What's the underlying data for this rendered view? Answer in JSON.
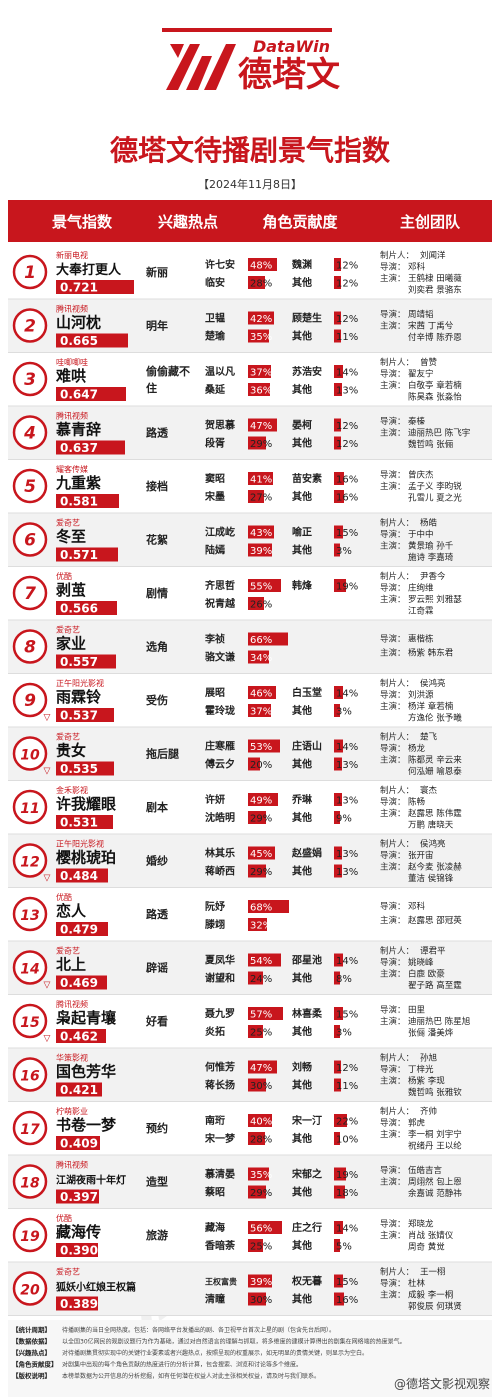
{
  "brand": {
    "name": "德塔文",
    "en": "DataWin"
  },
  "title": "德塔文待播剧景气指数",
  "date": "【2024年11月8日】",
  "colors": {
    "accent": "#c8161d",
    "bg_alt": "#f2f2f2",
    "bg": "#ffffff"
  },
  "columns": [
    "景气指数",
    "兴趣热点",
    "角色贡献度",
    "主创团队"
  ],
  "rows": [
    {
      "rank": "1",
      "platform": "新丽电视",
      "title": "大奉打更人",
      "index": "0.721",
      "index_num": 0.721,
      "trend": "",
      "hot": "新丽",
      "roles": [
        {
          "name": "许七安",
          "pct": "48%",
          "v": 48
        },
        {
          "name": "临安",
          "pct": "28%",
          "v": 28
        },
        {
          "name": "魏渊",
          "pct": "12%",
          "v": 12
        },
        {
          "name": "其他",
          "pct": "12%",
          "v": 12
        }
      ],
      "crew": [
        [
          "制片人：",
          "刘闻洋"
        ],
        [
          "导演：",
          "邓科"
        ],
        [
          "主演：",
          "王鹤棣 田曦薇"
        ],
        [
          "",
          "刘奕君 景骆东"
        ]
      ]
    },
    {
      "rank": "2",
      "platform": "腾讯视频",
      "title": "山河枕",
      "index": "0.665",
      "index_num": 0.665,
      "trend": "",
      "hot": "明年",
      "roles": [
        {
          "name": "卫韫",
          "pct": "42%",
          "v": 42
        },
        {
          "name": "楚瑜",
          "pct": "35%",
          "v": 35
        },
        {
          "name": "顾楚生",
          "pct": "12%",
          "v": 12
        },
        {
          "name": "其他",
          "pct": "11%",
          "v": 11
        }
      ],
      "crew": [
        [
          "导演：",
          "周靖韬"
        ],
        [
          "主演：",
          "宋茜 丁禹兮"
        ],
        [
          "",
          "付辛博 陈乔恩"
        ]
      ]
    },
    {
      "rank": "3",
      "platform": "哇唧唧哇",
      "title": "难哄",
      "index": "0.647",
      "index_num": 0.647,
      "trend": "",
      "hot": "偷偷藏不住",
      "roles": [
        {
          "name": "温以凡",
          "pct": "37%",
          "v": 37
        },
        {
          "name": "桑延",
          "pct": "36%",
          "v": 36
        },
        {
          "name": "苏浩安",
          "pct": "14%",
          "v": 14
        },
        {
          "name": "其他",
          "pct": "13%",
          "v": 13
        }
      ],
      "crew": [
        [
          "制片人：",
          "曾赞"
        ],
        [
          "导演：",
          "翟友宁"
        ],
        [
          "主演：",
          "白敬亭 章若楠"
        ],
        [
          "",
          "陈昊森 张淼怡"
        ]
      ]
    },
    {
      "rank": "4",
      "platform": "腾讯视频",
      "title": "慕青辞",
      "index": "0.637",
      "index_num": 0.637,
      "trend": "",
      "hot": "路透",
      "roles": [
        {
          "name": "贺思慕",
          "pct": "47%",
          "v": 47
        },
        {
          "name": "段胥",
          "pct": "29%",
          "v": 29
        },
        {
          "name": "晏柯",
          "pct": "12%",
          "v": 12
        },
        {
          "name": "其他",
          "pct": "12%",
          "v": 12
        }
      ],
      "crew": [
        [
          "导演：",
          "秦榛"
        ],
        [
          "主演：",
          "迪丽热巴 陈飞宇"
        ],
        [
          "",
          "魏哲鸣 张俪"
        ]
      ]
    },
    {
      "rank": "5",
      "platform": "耀客传媒",
      "title": "九重紫",
      "index": "0.581",
      "index_num": 0.581,
      "trend": "",
      "hot": "接档",
      "roles": [
        {
          "name": "窦昭",
          "pct": "41%",
          "v": 41
        },
        {
          "name": "宋墨",
          "pct": "27%",
          "v": 27
        },
        {
          "name": "苗安素",
          "pct": "16%",
          "v": 16
        },
        {
          "name": "其他",
          "pct": "16%",
          "v": 16
        }
      ],
      "crew": [
        [
          "导演：",
          "曾庆杰"
        ],
        [
          "主演：",
          "孟子义 李昀锐"
        ],
        [
          "",
          "孔雪儿 夏之光"
        ]
      ]
    },
    {
      "rank": "6",
      "platform": "爱奇艺",
      "title": "冬至",
      "index": "0.571",
      "index_num": 0.571,
      "trend": "",
      "hot": "花絮",
      "roles": [
        {
          "name": "江成屹",
          "pct": "43%",
          "v": 43
        },
        {
          "name": "陆嫣",
          "pct": "39%",
          "v": 39
        },
        {
          "name": "喻正",
          "pct": "15%",
          "v": 15
        },
        {
          "name": "其他",
          "pct": "3%",
          "v": 3
        }
      ],
      "crew": [
        [
          "制片人：",
          "杨皓"
        ],
        [
          "导演：",
          "于中中"
        ],
        [
          "主演：",
          "黄景瑜 孙千"
        ],
        [
          "",
          "施诗 李嘉琦"
        ]
      ]
    },
    {
      "rank": "7",
      "platform": "优酷",
      "title": "剥茧",
      "index": "0.566",
      "index_num": 0.566,
      "trend": "",
      "hot": "剧情",
      "roles": [
        {
          "name": "齐思哲",
          "pct": "55%",
          "v": 55
        },
        {
          "name": "祝青越",
          "pct": "26%",
          "v": 26
        },
        {
          "name": "韩烽",
          "pct": "19%",
          "v": 19
        },
        {
          "name": "",
          "pct": "",
          "v": 0
        }
      ],
      "crew": [
        [
          "制片人：",
          "尹香今"
        ],
        [
          "导演：",
          "庄绚维"
        ],
        [
          "主演：",
          "罗云熙 刘雅瑟"
        ],
        [
          "",
          "江奇霖"
        ]
      ]
    },
    {
      "rank": "8",
      "platform": "爱奇艺",
      "title": "家业",
      "index": "0.557",
      "index_num": 0.557,
      "trend": "",
      "hot": "选角",
      "roles": [
        {
          "name": "李祯",
          "pct": "66%",
          "v": 66
        },
        {
          "name": "骆文谦",
          "pct": "34%",
          "v": 34
        },
        {
          "name": "",
          "pct": "",
          "v": 0
        },
        {
          "name": "",
          "pct": "",
          "v": 0
        }
      ],
      "crew": [
        [
          "导演：",
          "惠楷栋"
        ],
        [
          "主演：",
          "杨紫 韩东君"
        ]
      ]
    },
    {
      "rank": "9",
      "platform": "正午阳光影视",
      "title": "雨霖铃",
      "index": "0.537",
      "index_num": 0.537,
      "trend": "▽",
      "hot": "受伤",
      "roles": [
        {
          "name": "展昭",
          "pct": "46%",
          "v": 46
        },
        {
          "name": "霍玲珑",
          "pct": "37%",
          "v": 37
        },
        {
          "name": "白玉堂",
          "pct": "14%",
          "v": 14
        },
        {
          "name": "其他",
          "pct": "3%",
          "v": 3
        }
      ],
      "crew": [
        [
          "制片人：",
          "侯鸿亮"
        ],
        [
          "导演：",
          "刘洪源"
        ],
        [
          "主演：",
          "杨洋 章若楠"
        ],
        [
          "",
          "方逸伦 张予曦"
        ]
      ]
    },
    {
      "rank": "10",
      "platform": "爱奇艺",
      "title": "贵女",
      "index": "0.535",
      "index_num": 0.535,
      "trend": "▽",
      "hot": "拖后腿",
      "roles": [
        {
          "name": "庄寒雁",
          "pct": "53%",
          "v": 53
        },
        {
          "name": "傅云夕",
          "pct": "20%",
          "v": 20
        },
        {
          "name": "庄语山",
          "pct": "14%",
          "v": 14
        },
        {
          "name": "其他",
          "pct": "13%",
          "v": 13
        }
      ],
      "crew": [
        [
          "制片人：",
          "楚飞"
        ],
        [
          "导演：",
          "杨龙"
        ],
        [
          "主演：",
          "陈都灵 辛云来"
        ],
        [
          "",
          "何泓姗 喻恩泰"
        ]
      ]
    },
    {
      "rank": "11",
      "platform": "金禾影视",
      "title": "许我耀眼",
      "index": "0.531",
      "index_num": 0.531,
      "trend": "",
      "hot": "剧本",
      "roles": [
        {
          "name": "许妍",
          "pct": "49%",
          "v": 49
        },
        {
          "name": "沈皓明",
          "pct": "29%",
          "v": 29
        },
        {
          "name": "乔琳",
          "pct": "13%",
          "v": 13
        },
        {
          "name": "其他",
          "pct": "9%",
          "v": 9
        }
      ],
      "crew": [
        [
          "制片人：",
          "寰杰"
        ],
        [
          "导演：",
          "陈畅"
        ],
        [
          "主演：",
          "赵露思 陈伟霆"
        ],
        [
          "",
          "万鹏 唐晓天"
        ]
      ]
    },
    {
      "rank": "12",
      "platform": "正午阳光影视",
      "title": "樱桃琥珀",
      "index": "0.484",
      "index_num": 0.484,
      "trend": "▽",
      "hot": "婚纱",
      "roles": [
        {
          "name": "林其乐",
          "pct": "45%",
          "v": 45
        },
        {
          "name": "蒋峤西",
          "pct": "29%",
          "v": 29
        },
        {
          "name": "赵盛娟",
          "pct": "13%",
          "v": 13
        },
        {
          "name": "其他",
          "pct": "13%",
          "v": 13
        }
      ],
      "crew": [
        [
          "制片人：",
          "侯鸿亮"
        ],
        [
          "导演：",
          "张开宙"
        ],
        [
          "主演：",
          "赵今麦 张凌赫"
        ],
        [
          "",
          "董洁 侯锦锋"
        ]
      ]
    },
    {
      "rank": "13",
      "platform": "优酷",
      "title": "恋人",
      "index": "0.479",
      "index_num": 0.479,
      "trend": "",
      "hot": "路透",
      "roles": [
        {
          "name": "阮妤",
          "pct": "68%",
          "v": 68
        },
        {
          "name": "滕翊",
          "pct": "32%",
          "v": 32
        },
        {
          "name": "",
          "pct": "",
          "v": 0
        },
        {
          "name": "",
          "pct": "",
          "v": 0
        }
      ],
      "crew": [
        [
          "导演：",
          "邓科"
        ],
        [
          "主演：",
          "赵露思 邵冠英"
        ]
      ]
    },
    {
      "rank": "14",
      "platform": "爱奇艺",
      "title": "北上",
      "index": "0.469",
      "index_num": 0.469,
      "trend": "▽",
      "hot": "辟谣",
      "roles": [
        {
          "name": "夏凤华",
          "pct": "54%",
          "v": 54
        },
        {
          "name": "谢望和",
          "pct": "24%",
          "v": 24
        },
        {
          "name": "邵星池",
          "pct": "14%",
          "v": 14
        },
        {
          "name": "其他",
          "pct": "8%",
          "v": 8
        }
      ],
      "crew": [
        [
          "制片人：",
          "谭君平"
        ],
        [
          "导演：",
          "姚晓峰"
        ],
        [
          "主演：",
          "白鹿 欧豪"
        ],
        [
          "",
          "翟子路 高至霆"
        ]
      ]
    },
    {
      "rank": "15",
      "platform": "腾讯视频",
      "title": "枭起青壤",
      "index": "0.462",
      "index_num": 0.462,
      "trend": "▽",
      "hot": "好看",
      "roles": [
        {
          "name": "聂九罗",
          "pct": "57%",
          "v": 57
        },
        {
          "name": "炎拓",
          "pct": "25%",
          "v": 25
        },
        {
          "name": "林喜柔",
          "pct": "15%",
          "v": 15
        },
        {
          "name": "其他",
          "pct": "3%",
          "v": 3
        }
      ],
      "crew": [
        [
          "导演：",
          "田里"
        ],
        [
          "主演：",
          "迪丽热巴 陈星旭"
        ],
        [
          "",
          "张俪 潘美烨"
        ]
      ]
    },
    {
      "rank": "16",
      "platform": "华策影视",
      "title": "国色芳华",
      "index": "0.421",
      "index_num": 0.421,
      "trend": "",
      "hot": "",
      "roles": [
        {
          "name": "何惟芳",
          "pct": "47%",
          "v": 47
        },
        {
          "name": "蒋长扬",
          "pct": "30%",
          "v": 30
        },
        {
          "name": "刘畅",
          "pct": "12%",
          "v": 12
        },
        {
          "name": "其他",
          "pct": "11%",
          "v": 11
        }
      ],
      "crew": [
        [
          "制片人：",
          "孙旭"
        ],
        [
          "导演：",
          "丁梓光"
        ],
        [
          "主演：",
          "杨紫 李现"
        ],
        [
          "",
          "魏哲鸣 张雅钦"
        ]
      ]
    },
    {
      "rank": "17",
      "platform": "柠萌影业",
      "title": "书卷一梦",
      "index": "0.409",
      "index_num": 0.409,
      "trend": "",
      "hot": "预约",
      "roles": [
        {
          "name": "南珩",
          "pct": "40%",
          "v": 40
        },
        {
          "name": "宋一梦",
          "pct": "28%",
          "v": 28
        },
        {
          "name": "宋一汀",
          "pct": "22%",
          "v": 22
        },
        {
          "name": "其他",
          "pct": "10%",
          "v": 10
        }
      ],
      "crew": [
        [
          "制片人：",
          "齐帅"
        ],
        [
          "导演：",
          "郭虎"
        ],
        [
          "主演：",
          "李一桐 刘宇宁"
        ],
        [
          "",
          "祝绪丹 王以纶"
        ]
      ]
    },
    {
      "rank": "18",
      "platform": "腾讯视频",
      "title": "江湖夜雨十年灯",
      "index": "0.397",
      "index_num": 0.397,
      "trend": "",
      "hot": "造型",
      "roles": [
        {
          "name": "慕清晏",
          "pct": "35%",
          "v": 35
        },
        {
          "name": "蔡昭",
          "pct": "29%",
          "v": 29
        },
        {
          "name": "宋郁之",
          "pct": "19%",
          "v": 19
        },
        {
          "name": "其他",
          "pct": "18%",
          "v": 18
        }
      ],
      "crew": [
        [
          "导演：",
          "伍皓吉言"
        ],
        [
          "主演：",
          "周翊然 包上恩"
        ],
        [
          "",
          "余嘉诚 范静祎"
        ]
      ]
    },
    {
      "rank": "19",
      "platform": "优酷",
      "title": "藏海传",
      "index": "0.390",
      "index_num": 0.39,
      "trend": "",
      "hot": "旅游",
      "roles": [
        {
          "name": "藏海",
          "pct": "56%",
          "v": 56
        },
        {
          "name": "香暗荼",
          "pct": "25%",
          "v": 25
        },
        {
          "name": "庄之行",
          "pct": "14%",
          "v": 14
        },
        {
          "name": "其他",
          "pct": "5%",
          "v": 5
        }
      ],
      "crew": [
        [
          "导演：",
          "郑晓龙"
        ],
        [
          "主演：",
          "肖战 张婧仪"
        ],
        [
          "",
          "周奇 黄觉"
        ]
      ]
    },
    {
      "rank": "20",
      "platform": "爱奇艺",
      "title": "狐妖小红娘王权篇",
      "index": "0.389",
      "index_num": 0.389,
      "trend": "",
      "hot": "",
      "roles": [
        {
          "name": "王权富贵",
          "pct": "39%",
          "v": 39
        },
        {
          "name": "清瞳",
          "pct": "30%",
          "v": 30
        },
        {
          "name": "权无暮",
          "pct": "15%",
          "v": 15
        },
        {
          "name": "其他",
          "pct": "16%",
          "v": 16
        }
      ],
      "crew": [
        [
          "制片人：",
          "王一栩"
        ],
        [
          "导演：",
          "杜林"
        ],
        [
          "主演：",
          "成毅 李一桐"
        ],
        [
          "",
          "郭俊辰 何琪贤"
        ]
      ]
    }
  ],
  "notes": [
    {
      "label": "【统计周期】",
      "text": "待播剧集的当日全网热度。包括：各网络平台发播出的剧、各卫视平台首次上星的剧（包含先台后网）。"
    },
    {
      "label": "【数据依据】",
      "text": "以全国30亿网民的观剧议题行为作为基础，通过对自然语言的理解与抓取，将多维度的建模计算得出的剧集在网络端的热度景气。"
    },
    {
      "label": "【兴趣热点】",
      "text": "对待播剧集贯彻实现中的关键行业要素或者兴趣热点，按照呈现的权重展示，如无明显的贵情关键，则显示为空白。"
    },
    {
      "label": "【角色贡献度】",
      "text": "对剧集中出现的每个角色贡献的热度进行的分析计算，包含搜索、浏览和讨论等多个维度。"
    },
    {
      "label": "【版权说明】",
      "text": "本榜单数据为公开信息的分析挖掘，如有任何潜在权益人对此主张相关权益，请及时与我们联系。"
    }
  ],
  "watermark": "@德塔文影视观察"
}
